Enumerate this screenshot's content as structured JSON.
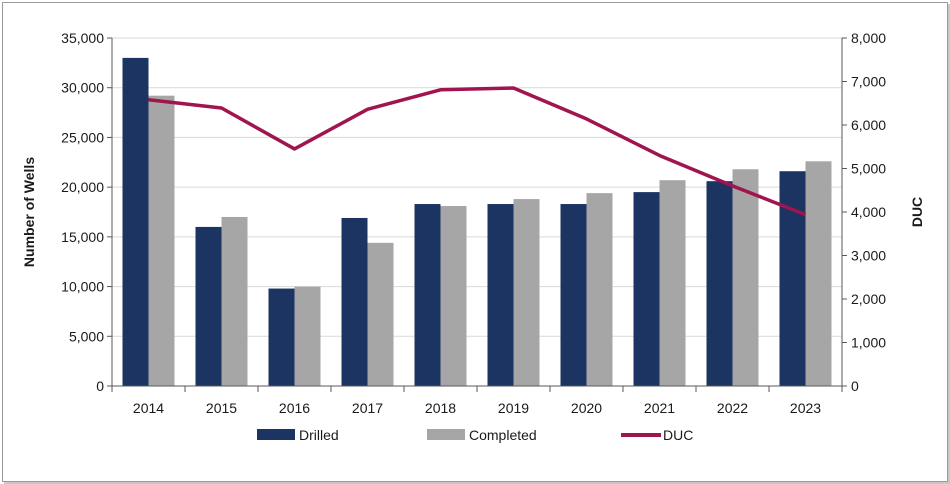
{
  "chart_data": {
    "type": "bar",
    "categories": [
      "2014",
      "2015",
      "2016",
      "2017",
      "2018",
      "2019",
      "2020",
      "2021",
      "2022",
      "2023"
    ],
    "series": [
      {
        "name": "Drilled",
        "type": "bar",
        "axis": "left",
        "color": "#1b3461",
        "values": [
          33000,
          16000,
          9800,
          16900,
          18300,
          18300,
          18300,
          19500,
          20600,
          21600
        ]
      },
      {
        "name": "Completed",
        "type": "bar",
        "axis": "left",
        "color": "#a6a6a6",
        "values": [
          29200,
          17000,
          10000,
          14400,
          18100,
          18800,
          19400,
          20700,
          21800,
          22600
        ]
      },
      {
        "name": "DUC",
        "type": "line",
        "axis": "right",
        "color": "#a0154f",
        "values": [
          6580,
          6390,
          5450,
          6360,
          6810,
          6850,
          6140,
          5300,
          4600,
          3940
        ]
      }
    ],
    "ylabel": "Number of Wells",
    "y2label": "DUC",
    "ylim": [
      0,
      35000
    ],
    "y2lim": [
      0,
      8000
    ],
    "yticks": [
      "0",
      "5,000",
      "10,000",
      "15,000",
      "20,000",
      "25,000",
      "30,000",
      "35,000"
    ],
    "y2ticks": [
      "0",
      "1,000",
      "2,000",
      "3,000",
      "4,000",
      "5,000",
      "6,000",
      "7,000",
      "8,000"
    ],
    "grid": true,
    "legend_position": "bottom"
  }
}
